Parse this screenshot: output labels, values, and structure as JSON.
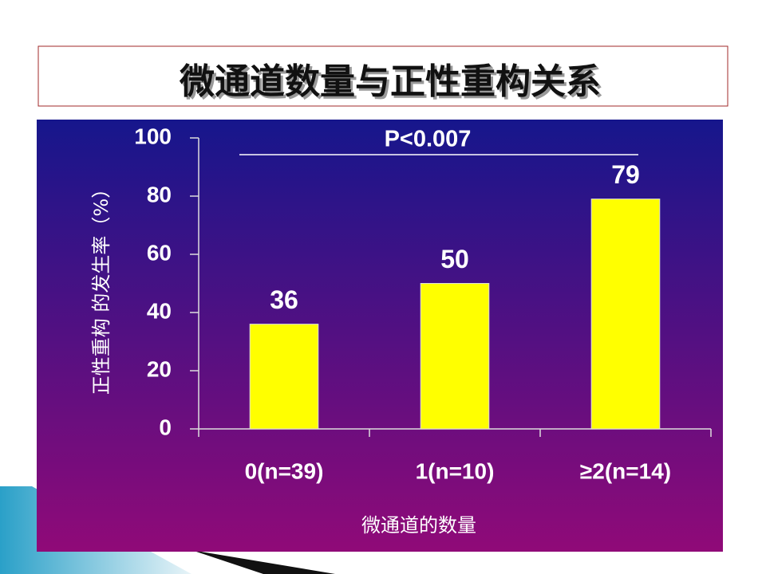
{
  "chart_data": {
    "type": "bar",
    "title": "微通道数量与正性重构关系",
    "categories": [
      "0(n=39)",
      "1(n=10)",
      "≥2(n=14)"
    ],
    "values": [
      36,
      50,
      79
    ],
    "color": "#ffff00",
    "ylim": [
      0,
      100
    ],
    "yticks": [
      0,
      20,
      40,
      60,
      80,
      100
    ],
    "xlabel": "微通道的数量",
    "ylabel": "正性重构 的发生率（%）",
    "annotation": "P<0.007"
  }
}
